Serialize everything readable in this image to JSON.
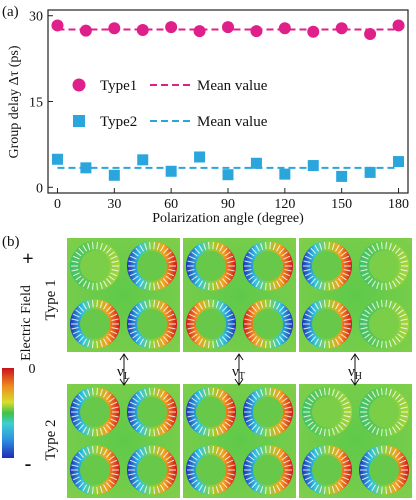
{
  "panel_a": {
    "label": "(a)",
    "chart_data": {
      "type": "scatter",
      "xlabel": "Polarization angle (degree)",
      "ylabel": "Group delay Δτ (ps)",
      "xlim": [
        -5,
        185
      ],
      "ylim": [
        -1,
        31
      ],
      "xticks": [
        0,
        30,
        60,
        90,
        120,
        150,
        180
      ],
      "yticks": [
        0,
        15,
        30
      ],
      "grid": false,
      "legend_position": "middle-left",
      "series": [
        {
          "name": "Type1",
          "marker": "circle",
          "color": "#e0208a",
          "x": [
            0,
            15,
            30,
            45,
            60,
            75,
            90,
            105,
            120,
            135,
            150,
            165,
            180
          ],
          "values": [
            28.3,
            27.4,
            27.8,
            27.5,
            28.0,
            27.3,
            28.0,
            27.3,
            27.8,
            27.2,
            27.8,
            26.8,
            28.3
          ],
          "mean": 27.6,
          "mean_label": "Mean value"
        },
        {
          "name": "Type2",
          "marker": "square",
          "color": "#2aa6dc",
          "x": [
            0,
            15,
            30,
            45,
            60,
            75,
            90,
            105,
            120,
            135,
            150,
            165,
            180
          ],
          "values": [
            4.9,
            3.4,
            2.1,
            4.8,
            2.8,
            5.3,
            2.2,
            4.2,
            2.3,
            3.8,
            1.9,
            2.6,
            4.5
          ],
          "mean": 3.4,
          "mean_label": "Mean value"
        }
      ]
    }
  },
  "panel_b": {
    "label": "(b)",
    "colorbar": {
      "title": "Electric Field",
      "max_label": "+",
      "mid_label": "0",
      "min_label": "-"
    },
    "row_labels": [
      "Type 1",
      "Type 2"
    ],
    "modes": [
      {
        "symbol": "ν",
        "sub": "L"
      },
      {
        "symbol": "ν",
        "sub": "T"
      },
      {
        "symbol": "ν",
        "sub": "H"
      }
    ]
  }
}
